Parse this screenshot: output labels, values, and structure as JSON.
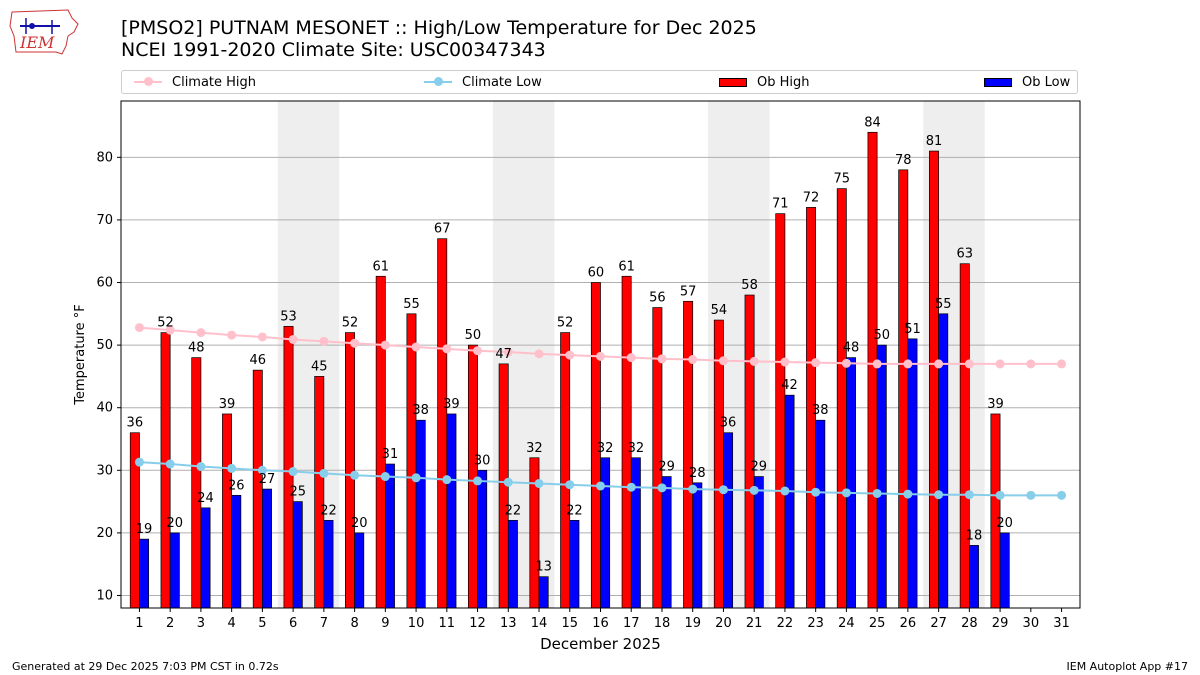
{
  "title": {
    "line1": "[PMSO2] PUTNAM MESONET :: High/Low Temperature for Dec 2025",
    "line2": "NCEI 1991-2020 Climate Site: USC00347343"
  },
  "logo": {
    "text": "IEM"
  },
  "legend": {
    "climate_high": "Climate High",
    "climate_low": "Climate Low",
    "ob_high": "Ob High",
    "ob_low": "Ob Low"
  },
  "footer": {
    "generated": "Generated at 29 Dec 2025 7:03 PM CST in 0.72s",
    "app": "IEM Autoplot App #17"
  },
  "colors": {
    "ob_high": "#ff0000",
    "ob_low": "#0000ff",
    "climate_high": "#ffc0cb",
    "climate_low": "#87ceeb",
    "weekend_shade": "#eeeeee",
    "grid": "#b0b0b0"
  },
  "chart_data": {
    "type": "bar",
    "xlabel": "December 2025",
    "ylabel": "Temperature °F",
    "ylim": [
      8,
      89
    ],
    "yticks": [
      10,
      20,
      30,
      40,
      50,
      60,
      70,
      80
    ],
    "categories": [
      "1",
      "2",
      "3",
      "4",
      "5",
      "6",
      "7",
      "8",
      "9",
      "10",
      "11",
      "12",
      "13",
      "14",
      "15",
      "16",
      "17",
      "18",
      "19",
      "20",
      "21",
      "22",
      "23",
      "24",
      "25",
      "26",
      "27",
      "28",
      "29",
      "30",
      "31"
    ],
    "shaded_weekends": [
      [
        6,
        7
      ],
      [
        13,
        14
      ],
      [
        20,
        21
      ],
      [
        27,
        28
      ]
    ],
    "series": [
      {
        "name": "Ob High",
        "kind": "bar",
        "values": [
          36,
          52,
          48,
          39,
          46,
          53,
          45,
          52,
          61,
          55,
          67,
          50,
          47,
          32,
          52,
          60,
          61,
          56,
          57,
          54,
          58,
          71,
          72,
          75,
          84,
          78,
          81,
          63,
          39,
          null,
          null
        ]
      },
      {
        "name": "Ob Low",
        "kind": "bar",
        "values": [
          19,
          20,
          24,
          26,
          27,
          25,
          22,
          20,
          31,
          38,
          39,
          30,
          22,
          13,
          22,
          32,
          32,
          29,
          28,
          36,
          29,
          42,
          38,
          48,
          50,
          51,
          55,
          18,
          20,
          null,
          null
        ]
      },
      {
        "name": "Climate High",
        "kind": "line",
        "values": [
          52.8,
          52.4,
          52.0,
          51.6,
          51.3,
          50.9,
          50.6,
          50.3,
          50.0,
          49.7,
          49.4,
          49.1,
          48.9,
          48.6,
          48.4,
          48.2,
          48.0,
          47.8,
          47.7,
          47.5,
          47.4,
          47.3,
          47.2,
          47.1,
          47.0,
          47.0,
          47.0,
          47.0,
          47.0,
          47.0,
          47.0
        ]
      },
      {
        "name": "Climate Low",
        "kind": "line",
        "values": [
          31.3,
          31.0,
          30.6,
          30.3,
          30.0,
          29.8,
          29.5,
          29.2,
          29.0,
          28.8,
          28.5,
          28.3,
          28.1,
          27.9,
          27.7,
          27.5,
          27.3,
          27.2,
          27.0,
          26.9,
          26.8,
          26.7,
          26.5,
          26.4,
          26.3,
          26.2,
          26.1,
          26.1,
          26.0,
          26.0,
          26.0
        ]
      }
    ]
  }
}
